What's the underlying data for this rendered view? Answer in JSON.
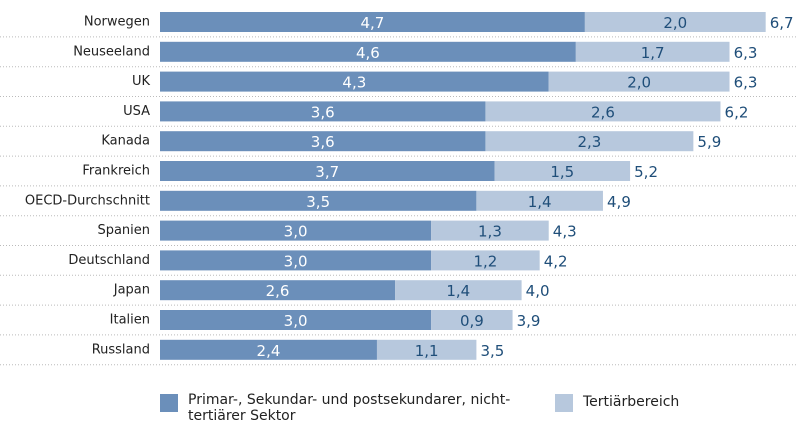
{
  "chart_data": {
    "type": "stacked-bar-horizontal",
    "categories": [
      "Norwegen",
      "Neuseeland",
      "UK",
      "USA",
      "Kanada",
      "Frankreich",
      "OECD-Durchschnitt",
      "Spanien",
      "Deutschland",
      "Japan",
      "Italien",
      "Russland"
    ],
    "series": [
      {
        "name": "Primar-, Sekundar- und postsekundarer, nicht-tertiärer Sektor",
        "color": "#6b8fba",
        "values": [
          4.7,
          4.6,
          4.3,
          3.6,
          3.6,
          3.7,
          3.5,
          3.0,
          3.0,
          2.6,
          3.0,
          2.4
        ],
        "value_labels": [
          "4,7",
          "4,6",
          "4,3",
          "3,6",
          "3,6",
          "3,7",
          "3,5",
          "3,0",
          "3,0",
          "2,6",
          "3,0",
          "2,4"
        ]
      },
      {
        "name": "Tertiärbereich",
        "color": "#b7c8dd",
        "values": [
          2.0,
          1.7,
          2.0,
          2.6,
          2.3,
          1.5,
          1.4,
          1.3,
          1.2,
          1.4,
          0.9,
          1.1
        ],
        "value_labels": [
          "2,0",
          "1,7",
          "2,0",
          "2,6",
          "2,3",
          "1,5",
          "1,4",
          "1,3",
          "1,2",
          "1,4",
          "0,9",
          "1,1"
        ]
      }
    ],
    "totals": [
      6.7,
      6.3,
      6.3,
      6.2,
      5.9,
      5.2,
      4.9,
      4.3,
      4.2,
      4.0,
      3.9,
      3.5
    ],
    "total_labels": [
      "6,7",
      "6,3",
      "6,3",
      "6,2",
      "5,9",
      "5,2",
      "4,9",
      "4,3",
      "4,2",
      "4,0",
      "3,9",
      "3,5"
    ]
  }
}
